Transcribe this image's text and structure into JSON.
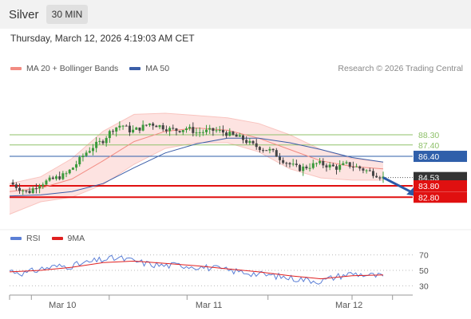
{
  "header": {
    "instrument": "Silver",
    "timeframe": "30 MIN"
  },
  "datetime": "Thursday, March 12, 2026 4:19:03 AM CET",
  "legend": {
    "bollinger": "MA 20 + Bollinger Bands",
    "ma50": "MA 50",
    "credit": "Research © 2026 Trading Central"
  },
  "rsi_legend": {
    "rsi": "RSI",
    "ma9": "9MA"
  },
  "colors": {
    "up": "#3a9a3a",
    "down": "#444444",
    "bollinger": "#f28b82",
    "band_fill": "#fde0de",
    "ma50": "#3b5ea8",
    "resistance": "#8fc16a",
    "pivot": "#2f5faa",
    "support": "#e01010",
    "last": "#333333",
    "rsi": "#5b7fd6",
    "rsi_ma": "#e02020"
  },
  "chart_data": {
    "type": "candlestick",
    "ylim": [
      80.5,
      93.5
    ],
    "x_labels": [
      "Mar 10",
      "Mar 11",
      "Mar 12"
    ],
    "levels": [
      {
        "label": "88.30",
        "value": 88.3,
        "kind": "resistance"
      },
      {
        "label": "87.40",
        "value": 87.4,
        "kind": "resistance"
      },
      {
        "label": "86.40",
        "value": 86.4,
        "kind": "pivot"
      },
      {
        "label": "84.53",
        "value": 84.53,
        "kind": "last"
      },
      {
        "label": "83.80",
        "value": 83.8,
        "kind": "support"
      },
      {
        "label": "82.80",
        "value": 82.8,
        "kind": "support"
      }
    ],
    "price_path": [
      [
        0,
        84.1
      ],
      [
        3,
        83.6
      ],
      [
        6,
        83.2
      ],
      [
        9,
        83.9
      ],
      [
        12,
        84.2
      ],
      [
        15,
        84.5
      ],
      [
        18,
        84.8
      ],
      [
        21,
        85.6
      ],
      [
        24,
        86.6
      ],
      [
        27,
        87.3
      ],
      [
        30,
        87.8
      ],
      [
        33,
        88.8
      ],
      [
        36,
        89.2
      ],
      [
        39,
        88.6
      ],
      [
        42,
        88.9
      ],
      [
        45,
        89.3
      ],
      [
        48,
        89.1
      ],
      [
        51,
        88.8
      ],
      [
        54,
        88.7
      ],
      [
        57,
        88.9
      ],
      [
        60,
        88.5
      ],
      [
        63,
        88.6
      ],
      [
        66,
        88.7
      ],
      [
        69,
        88.5
      ],
      [
        72,
        88.2
      ],
      [
        75,
        87.9
      ],
      [
        78,
        87.4
      ],
      [
        81,
        87.1
      ],
      [
        84,
        86.9
      ],
      [
        87,
        86.2
      ],
      [
        90,
        85.7
      ],
      [
        93,
        85.3
      ],
      [
        96,
        85.5
      ],
      [
        99,
        85.8
      ],
      [
        102,
        85.6
      ],
      [
        105,
        85.4
      ],
      [
        108,
        85.7
      ],
      [
        111,
        85.5
      ],
      [
        114,
        85.2
      ],
      [
        117,
        84.9
      ],
      [
        120,
        84.53
      ]
    ],
    "bollinger_mid": [
      [
        0,
        83.3
      ],
      [
        10,
        83.6
      ],
      [
        20,
        84.4
      ],
      [
        30,
        86.0
      ],
      [
        40,
        87.7
      ],
      [
        50,
        88.6
      ],
      [
        60,
        88.9
      ],
      [
        70,
        88.7
      ],
      [
        80,
        88.0
      ],
      [
        90,
        87.0
      ],
      [
        100,
        86.0
      ],
      [
        110,
        85.5
      ],
      [
        120,
        85.3
      ]
    ],
    "bollinger_upper": [
      [
        0,
        84.0
      ],
      [
        10,
        84.6
      ],
      [
        20,
        86.2
      ],
      [
        30,
        88.6
      ],
      [
        40,
        90.1
      ],
      [
        50,
        90.2
      ],
      [
        60,
        90.0
      ],
      [
        70,
        89.8
      ],
      [
        80,
        89.3
      ],
      [
        90,
        88.3
      ],
      [
        100,
        87.0
      ],
      [
        110,
        86.2
      ],
      [
        120,
        85.9
      ]
    ],
    "bollinger_lower": [
      [
        0,
        81.3
      ],
      [
        10,
        82.4
      ],
      [
        20,
        82.8
      ],
      [
        30,
        83.9
      ],
      [
        40,
        85.7
      ],
      [
        50,
        87.1
      ],
      [
        60,
        87.6
      ],
      [
        70,
        87.6
      ],
      [
        80,
        86.8
      ],
      [
        90,
        85.3
      ],
      [
        100,
        84.5
      ],
      [
        110,
        84.3
      ],
      [
        120,
        84.3
      ]
    ],
    "ma50": [
      [
        0,
        82.9
      ],
      [
        10,
        83.0
      ],
      [
        20,
        83.3
      ],
      [
        30,
        84.0
      ],
      [
        40,
        85.4
      ],
      [
        50,
        86.7
      ],
      [
        60,
        87.5
      ],
      [
        70,
        88.0
      ],
      [
        80,
        88.0
      ],
      [
        90,
        87.6
      ],
      [
        100,
        87.0
      ],
      [
        110,
        86.3
      ],
      [
        120,
        85.9
      ]
    ],
    "forecast": [
      [
        120,
        84.53
      ],
      [
        128,
        82.9
      ]
    ],
    "rsi": {
      "ylim": [
        20,
        80
      ],
      "levels": [
        70,
        50,
        30
      ],
      "rsi_path": [
        [
          0,
          50
        ],
        [
          5,
          46
        ],
        [
          10,
          52
        ],
        [
          15,
          55
        ],
        [
          20,
          56
        ],
        [
          25,
          60
        ],
        [
          30,
          64
        ],
        [
          35,
          66
        ],
        [
          40,
          62
        ],
        [
          45,
          58
        ],
        [
          50,
          56
        ],
        [
          55,
          57
        ],
        [
          60,
          55
        ],
        [
          65,
          53
        ],
        [
          70,
          50
        ],
        [
          75,
          48
        ],
        [
          80,
          45
        ],
        [
          85,
          43
        ],
        [
          90,
          40
        ],
        [
          95,
          38
        ],
        [
          100,
          36
        ],
        [
          105,
          42
        ],
        [
          110,
          46
        ],
        [
          115,
          44
        ],
        [
          120,
          42
        ]
      ],
      "ma_path": [
        [
          0,
          48
        ],
        [
          10,
          50
        ],
        [
          20,
          54
        ],
        [
          30,
          60
        ],
        [
          40,
          62
        ],
        [
          50,
          59
        ],
        [
          60,
          56
        ],
        [
          70,
          52
        ],
        [
          80,
          48
        ],
        [
          90,
          43
        ],
        [
          100,
          39
        ],
        [
          110,
          43
        ],
        [
          120,
          44
        ]
      ]
    }
  }
}
